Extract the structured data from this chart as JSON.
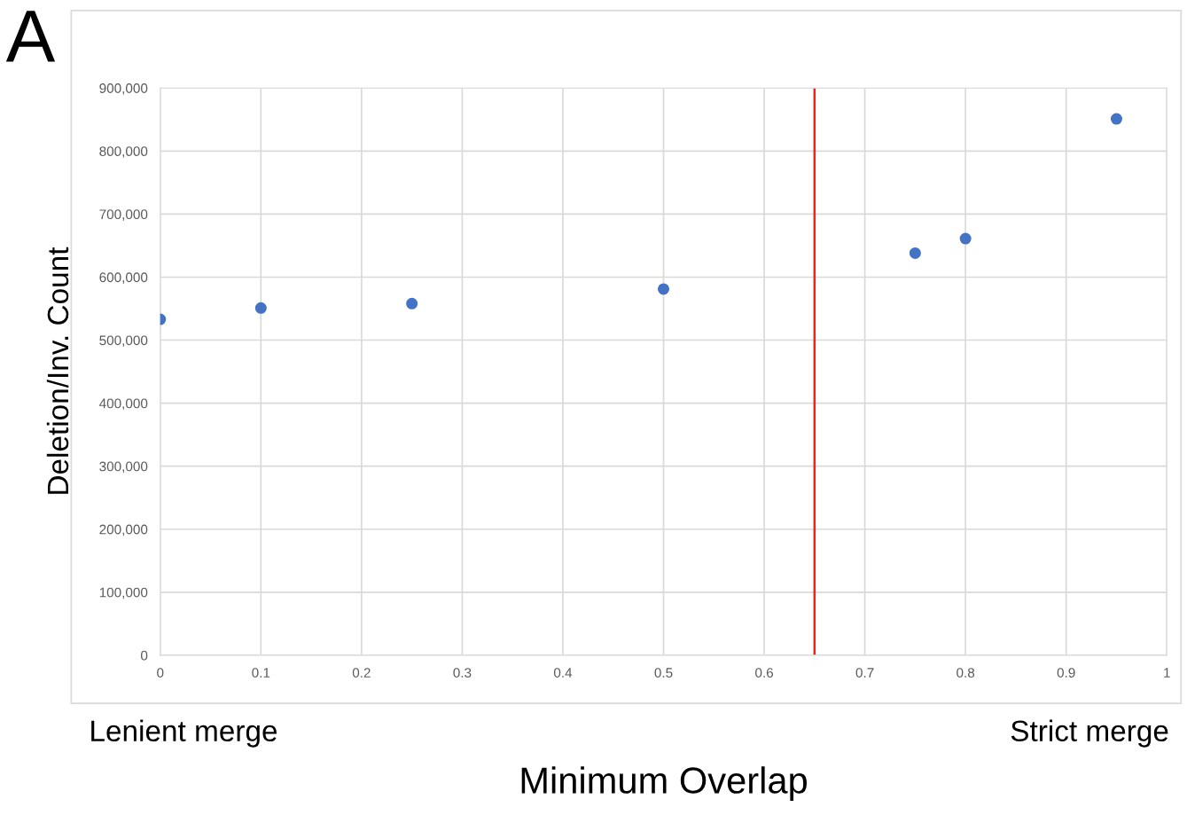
{
  "chart_data": {
    "type": "scatter",
    "xlabel": "Minimum Overlap",
    "ylabel": "Deletion/Inv. Count",
    "x": [
      0,
      0.1,
      0.25,
      0.5,
      0.75,
      0.8,
      0.95
    ],
    "series": [
      {
        "color": "#4472c4",
        "values": [
          533000,
          551000,
          558000,
          581000,
          638000,
          661000,
          851000
        ]
      }
    ],
    "marker": "circle",
    "grid": true,
    "legend": false,
    "xlim": [
      0,
      1
    ],
    "xticks": [
      0,
      0.1,
      0.2,
      0.3,
      0.4,
      0.5,
      0.6,
      0.7,
      0.8,
      0.9,
      1
    ],
    "ylim": [
      0,
      900000
    ],
    "yticks": [
      0,
      {
        "value": 100000,
        "label": "100,000"
      },
      {
        "value": 200000,
        "label": "200,000"
      },
      {
        "value": 300000,
        "label": "300,000"
      },
      {
        "value": 400000,
        "label": "400,000"
      },
      {
        "value": 500000,
        "label": "500,000"
      },
      {
        "value": 600000,
        "label": "600,000"
      },
      {
        "value": 700000,
        "label": "700,000"
      },
      {
        "value": 800000,
        "label": "800,000"
      },
      {
        "value": 900000,
        "label": "900,000"
      }
    ],
    "ref_lines": [
      {
        "axis": "x",
        "value": 0.65,
        "color": "#e8261c"
      }
    ],
    "annotations": [
      "A",
      "Lenient merge",
      "Strict merge"
    ]
  }
}
